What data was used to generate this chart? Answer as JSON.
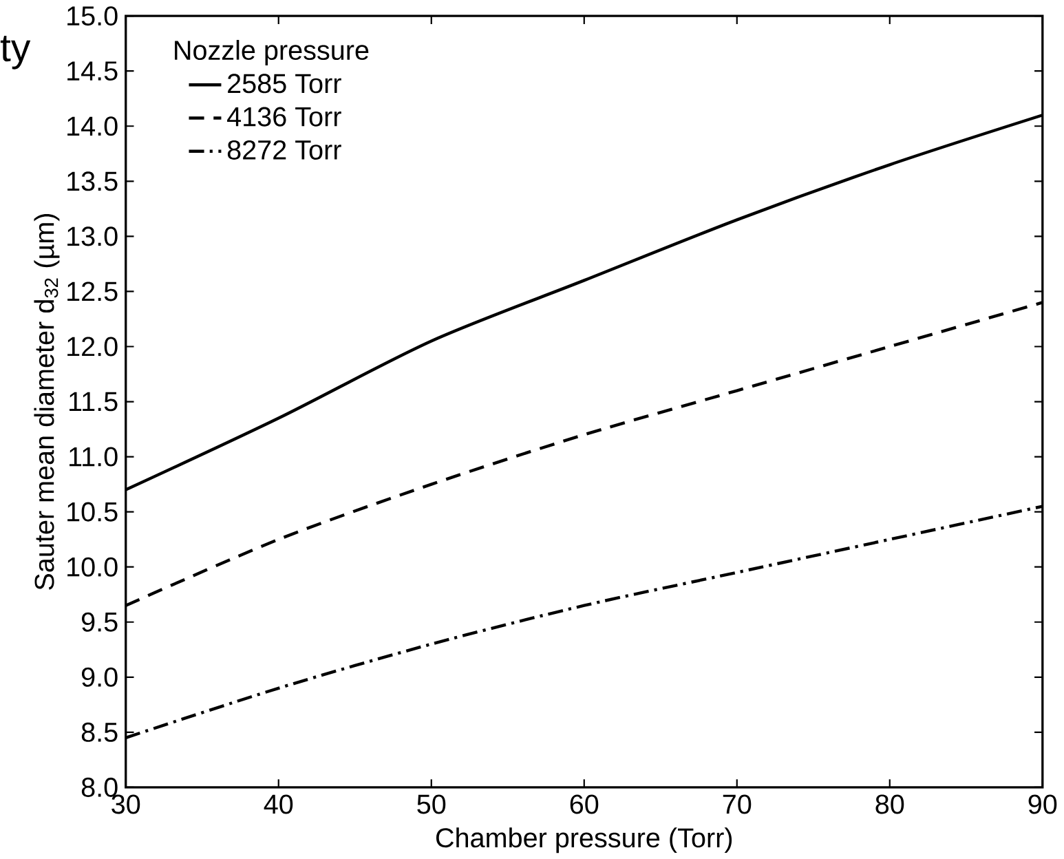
{
  "chart_data": {
    "type": "line",
    "xlabel": "Chamber pressure (Torr)",
    "ylabel": "Sauter mean diameter d$_{32}$ (µm)",
    "legend_title": "Nozzle pressure",
    "x": [
      30,
      40,
      50,
      60,
      70,
      80,
      90
    ],
    "series": [
      {
        "name": "2585 Torr",
        "color": "#000000",
        "line_style": "solid",
        "values": [
          10.7,
          11.35,
          12.05,
          12.6,
          13.15,
          13.65,
          14.1
        ]
      },
      {
        "name": "4136 Torr",
        "color": "#000000",
        "line_style": "dashed",
        "values": [
          9.65,
          10.25,
          10.75,
          11.2,
          11.6,
          12.0,
          12.4
        ]
      },
      {
        "name": "8272 Torr",
        "color": "#000000",
        "line_style": "dashdot",
        "values": [
          8.45,
          8.9,
          9.3,
          9.65,
          9.95,
          10.25,
          10.55
        ]
      }
    ],
    "xlim": [
      30,
      90
    ],
    "xticks": [
      30,
      40,
      50,
      60,
      70,
      80,
      90
    ],
    "ylim": [
      8,
      15
    ],
    "yticks": [
      {
        "value": 8,
        "label": "8.0"
      },
      {
        "value": 8.5,
        "label": "8.5"
      },
      {
        "value": 9,
        "label": "9.0"
      },
      {
        "value": 9.5,
        "label": "9.5"
      },
      {
        "value": 10,
        "label": "10.0"
      },
      {
        "value": 10.5,
        "label": "10.5"
      },
      {
        "value": 11,
        "label": "11.0"
      },
      {
        "value": 11.5,
        "label": "11.5"
      },
      {
        "value": 12,
        "label": "12.0"
      },
      {
        "value": 12.5,
        "label": "12.5"
      },
      {
        "value": 13,
        "label": "13.0"
      },
      {
        "value": 13.5,
        "label": "13.5"
      },
      {
        "value": 14,
        "label": "14.0"
      },
      {
        "value": 14.5,
        "label": "14.5"
      },
      {
        "value": 15,
        "label": "15.0"
      }
    ],
    "legend": "top left",
    "grid": false,
    "marker": "none",
    "annotations": [
      "ty"
    ]
  }
}
